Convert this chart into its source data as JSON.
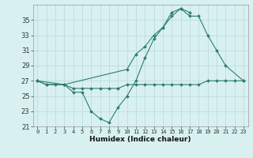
{
  "xlabel": "Humidex (Indice chaleur)",
  "x": [
    0,
    1,
    2,
    3,
    4,
    5,
    6,
    7,
    8,
    9,
    10,
    11,
    12,
    13,
    14,
    15,
    16,
    17,
    18,
    19,
    20,
    21,
    22,
    23
  ],
  "line1_x": [
    0,
    1,
    2,
    3,
    4,
    5,
    6,
    7,
    8,
    9,
    10,
    11,
    12,
    13,
    14,
    15,
    16,
    17
  ],
  "line1_y": [
    27.0,
    26.5,
    26.5,
    26.5,
    25.5,
    25.5,
    23.0,
    22.0,
    21.5,
    23.5,
    25.0,
    27.0,
    30.0,
    32.5,
    34.0,
    36.0,
    36.5,
    36.0
  ],
  "line2_x": [
    0,
    3,
    10,
    11,
    12,
    13,
    14,
    15,
    16,
    17,
    18,
    19,
    20,
    21,
    23
  ],
  "line2_y": [
    27.0,
    26.5,
    28.5,
    30.5,
    31.5,
    33.0,
    34.0,
    35.5,
    36.5,
    35.5,
    35.5,
    33.0,
    31.0,
    29.0,
    27.0
  ],
  "line3_x": [
    0,
    1,
    3,
    4,
    5,
    6,
    7,
    8,
    9,
    10,
    11,
    12,
    13,
    14,
    15,
    16,
    17,
    18,
    19,
    20,
    21,
    22,
    23
  ],
  "line3_y": [
    27.0,
    26.5,
    26.5,
    26.0,
    26.0,
    26.0,
    26.0,
    26.0,
    26.0,
    26.5,
    26.5,
    26.5,
    26.5,
    26.5,
    26.5,
    26.5,
    26.5,
    26.5,
    27.0,
    27.0,
    27.0,
    27.0,
    27.0
  ],
  "color": "#2e7d6e",
  "bg_color": "#d8f0f0",
  "grid_color": "#b8d8d8",
  "ylim": [
    21,
    37
  ],
  "yticks": [
    21,
    23,
    25,
    27,
    29,
    31,
    33,
    35
  ],
  "xlim": [
    -0.5,
    23.5
  ],
  "xtick_fontsize": 5.0,
  "ytick_fontsize": 6.0,
  "xlabel_fontsize": 6.5
}
